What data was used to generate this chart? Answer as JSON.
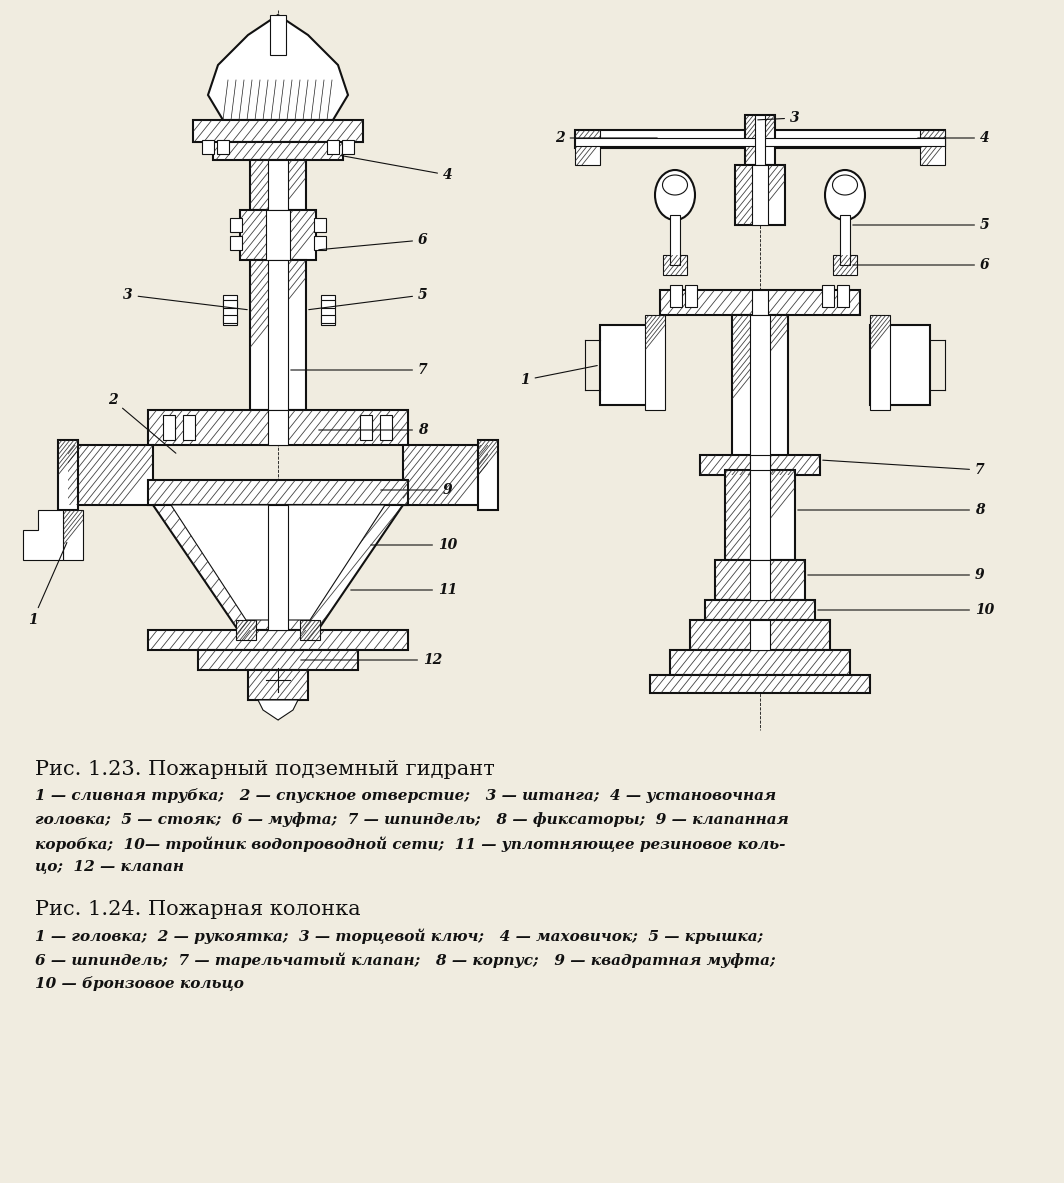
{
  "bg_color": "#f0ece0",
  "title1": "Рис. 1.23. Пожарный подземный гидрант",
  "caption1_lines": [
    "1 — сливная трубка;   2 — спускное отверстие;   3 — штанга;  4 — установочная",
    "головка;  5 — стояк;  6 — муфта;  7 — шпиндель;   8 — фиксаторы;  9 — клапанная",
    "коробка;  10— тройник водопроводной сети;  11 — уплотняющее резиновое коль-",
    "цо;  12 — клапан"
  ],
  "title2": "Рис. 1.24. Пожарная колонка",
  "caption2_lines": [
    "1 — головка;  2 — рукоятка;  3 — торцевой ключ;   4 — маховичок;  5 — крышка;",
    "6 — шпиндель;  7 — тарельчатый клапан;   8 — корпус;   9 — квадратная муфта;",
    "10 — бронзовое кольцо"
  ],
  "line_color": "#111111",
  "hatch_color": "#222222",
  "fig_width": 10.64,
  "fig_height": 11.83
}
